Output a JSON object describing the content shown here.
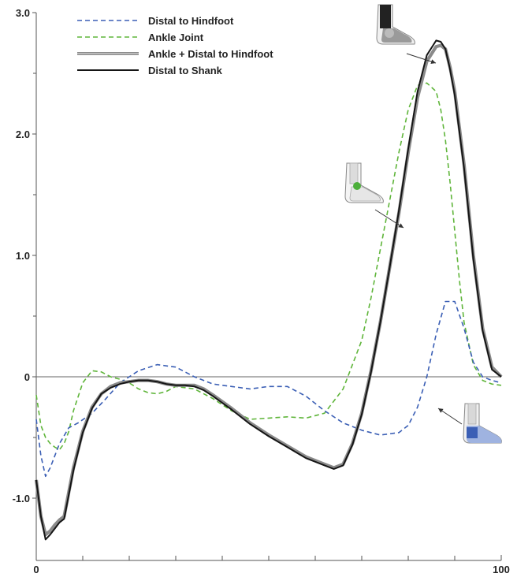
{
  "chart_data": {
    "type": "line",
    "title": "",
    "xlabel": "",
    "ylabel": "",
    "xlim": [
      0,
      100
    ],
    "ylim": [
      -1.5,
      3.0
    ],
    "grid": false,
    "legend_position": "top-left",
    "x_tick_labels": [
      {
        "value": 0,
        "label": "0"
      },
      {
        "value": 100,
        "label": "100"
      }
    ],
    "x_minor_ticks": [
      10,
      20,
      30,
      40,
      50,
      60,
      70,
      80,
      90
    ],
    "y_tick_labels": [
      {
        "value": 3.0,
        "label": "3.0"
      },
      {
        "value": 2.0,
        "label": "2.0"
      },
      {
        "value": 1.0,
        "label": "1.0"
      },
      {
        "value": 0,
        "label": "0"
      },
      {
        "value": -1.0,
        "label": "-1.0"
      }
    ],
    "y_minor_ticks": [
      2.5,
      1.5,
      0.5,
      -0.5
    ],
    "series": [
      {
        "name": "Distal to Hindfoot",
        "color": "#3b5fb5",
        "dash": "dashed",
        "x": [
          0,
          1,
          2,
          3,
          5,
          7,
          9,
          12,
          15,
          18,
          22,
          26,
          30,
          34,
          38,
          42,
          46,
          50,
          54,
          58,
          62,
          66,
          70,
          74,
          78,
          80,
          82,
          84,
          86,
          88,
          90,
          92,
          94,
          96,
          98,
          100
        ],
        "y": [
          -0.35,
          -0.65,
          -0.82,
          -0.75,
          -0.55,
          -0.42,
          -0.38,
          -0.3,
          -0.18,
          -0.05,
          0.05,
          0.1,
          0.08,
          0.0,
          -0.06,
          -0.08,
          -0.1,
          -0.08,
          -0.08,
          -0.16,
          -0.28,
          -0.38,
          -0.44,
          -0.48,
          -0.46,
          -0.4,
          -0.25,
          0.0,
          0.35,
          0.62,
          0.62,
          0.4,
          0.12,
          0.0,
          -0.03,
          -0.05
        ]
      },
      {
        "name": "Ankle Joint",
        "color": "#5fb53a",
        "dash": "dashed",
        "x": [
          0,
          1,
          2,
          3,
          4,
          5,
          6,
          7,
          8,
          10,
          12,
          14,
          16,
          18,
          20,
          22,
          24,
          26,
          28,
          30,
          34,
          38,
          42,
          46,
          50,
          54,
          58,
          62,
          66,
          70,
          72,
          74,
          76,
          78,
          80,
          82,
          84,
          86,
          87,
          88,
          89,
          90,
          91,
          92,
          94,
          96,
          98,
          100
        ],
        "y": [
          -0.15,
          -0.4,
          -0.5,
          -0.55,
          -0.58,
          -0.6,
          -0.55,
          -0.45,
          -0.28,
          -0.05,
          0.05,
          0.04,
          0.0,
          -0.02,
          -0.05,
          -0.1,
          -0.13,
          -0.14,
          -0.12,
          -0.08,
          -0.1,
          -0.18,
          -0.28,
          -0.35,
          -0.34,
          -0.33,
          -0.34,
          -0.3,
          -0.1,
          0.3,
          0.65,
          1.05,
          1.45,
          1.85,
          2.2,
          2.4,
          2.42,
          2.35,
          2.2,
          1.95,
          1.6,
          1.2,
          0.8,
          0.45,
          0.1,
          -0.03,
          -0.06,
          -0.07
        ]
      },
      {
        "name": "Ankle + Distal to Hindfoot",
        "color": "#8a8a8a",
        "dash": "solid",
        "x": [
          0,
          1,
          2,
          3,
          4,
          5,
          6,
          7,
          8,
          10,
          12,
          14,
          16,
          18,
          20,
          22,
          24,
          26,
          28,
          30,
          32,
          34,
          36,
          38,
          42,
          46,
          50,
          54,
          58,
          62,
          64,
          66,
          68,
          70,
          72,
          74,
          76,
          78,
          80,
          82,
          84,
          86,
          87,
          88,
          89,
          90,
          92,
          94,
          96,
          98,
          100
        ],
        "y": [
          -0.85,
          -1.15,
          -1.3,
          -1.27,
          -1.22,
          -1.18,
          -1.15,
          -0.95,
          -0.75,
          -0.45,
          -0.25,
          -0.14,
          -0.08,
          -0.05,
          -0.04,
          -0.03,
          -0.03,
          -0.04,
          -0.06,
          -0.07,
          -0.07,
          -0.07,
          -0.1,
          -0.15,
          -0.26,
          -0.38,
          -0.48,
          -0.57,
          -0.66,
          -0.72,
          -0.75,
          -0.72,
          -0.55,
          -0.3,
          0.05,
          0.45,
          0.9,
          1.35,
          1.85,
          2.3,
          2.6,
          2.72,
          2.73,
          2.7,
          2.55,
          2.35,
          1.75,
          1.0,
          0.4,
          0.08,
          0.0
        ]
      },
      {
        "name": "Distal to Shank",
        "color": "#151515",
        "dash": "solid",
        "x": [
          0,
          1,
          2,
          3,
          4,
          5,
          6,
          7,
          8,
          10,
          12,
          14,
          16,
          18,
          20,
          22,
          24,
          26,
          28,
          30,
          32,
          34,
          36,
          38,
          42,
          46,
          50,
          54,
          58,
          62,
          64,
          66,
          68,
          70,
          72,
          74,
          76,
          78,
          80,
          82,
          84,
          86,
          87,
          88,
          89,
          90,
          92,
          94,
          96,
          98,
          100
        ],
        "y": [
          -0.85,
          -1.15,
          -1.34,
          -1.3,
          -1.25,
          -1.2,
          -1.17,
          -0.97,
          -0.77,
          -0.46,
          -0.26,
          -0.14,
          -0.09,
          -0.06,
          -0.04,
          -0.03,
          -0.03,
          -0.04,
          -0.06,
          -0.07,
          -0.07,
          -0.08,
          -0.11,
          -0.16,
          -0.27,
          -0.39,
          -0.49,
          -0.58,
          -0.67,
          -0.73,
          -0.76,
          -0.73,
          -0.56,
          -0.31,
          0.04,
          0.45,
          0.9,
          1.37,
          1.88,
          2.35,
          2.65,
          2.77,
          2.76,
          2.7,
          2.53,
          2.32,
          1.72,
          0.97,
          0.38,
          0.06,
          0.0
        ]
      }
    ]
  },
  "annotations": [
    {
      "name": "shank-foot-icon",
      "shading": "shank-dark",
      "points_to": {
        "x": 87,
        "y": 2.6
      }
    },
    {
      "name": "ankle-joint-foot-icon",
      "shading": "green-joint",
      "accent_color": "#4caf3a",
      "points_to": {
        "x": 79,
        "y": 1.25
      }
    },
    {
      "name": "hindfoot-foot-icon",
      "shading": "blue-hindfoot",
      "accent_color": "#3b5fb5",
      "points_to": {
        "x": 86,
        "y": -0.25
      }
    }
  ]
}
